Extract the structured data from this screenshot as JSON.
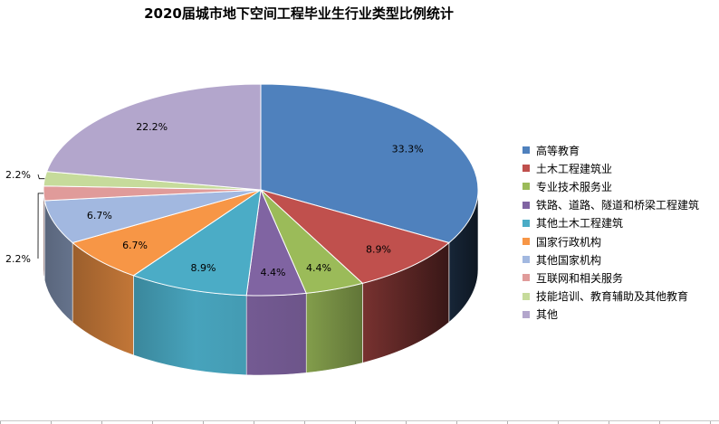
{
  "chart_data": {
    "type": "pie",
    "title": "2020届城市地下空间工程毕业生行业类型比例统计",
    "legend_position": "right",
    "slices": [
      {
        "name": "高等教育",
        "value": 33.3,
        "label": "33.3%",
        "color": "#4F81BD"
      },
      {
        "name": "土木工程建筑业",
        "value": 8.9,
        "label": "8.9%",
        "color": "#C0504D"
      },
      {
        "name": "专业技术服务业",
        "value": 4.4,
        "label": "4.4%",
        "color": "#9BBB59"
      },
      {
        "name": "铁路、道路、隧道和桥梁工程建筑",
        "value": 4.4,
        "label": "4.4%",
        "color": "#8064A2"
      },
      {
        "name": "其他土木工程建筑",
        "value": 8.9,
        "label": "8.9%",
        "color": "#4BACC6"
      },
      {
        "name": "国家行政机构",
        "value": 6.7,
        "label": "6.7%",
        "color": "#F79646"
      },
      {
        "name": "其他国家机构",
        "value": 6.7,
        "label": "6.7%",
        "color": "#A2B8E0"
      },
      {
        "name": "互联网和相关服务",
        "value": 2.2,
        "label": "2.2%",
        "color": "#E09B9A"
      },
      {
        "name": "技能培训、教育辅助及其他教育",
        "value": 2.2,
        "label": "2.2%",
        "color": "#C6DB9B"
      },
      {
        "name": "其他",
        "value": 22.2,
        "label": "22.2%",
        "color": "#B3A6CC"
      }
    ]
  }
}
